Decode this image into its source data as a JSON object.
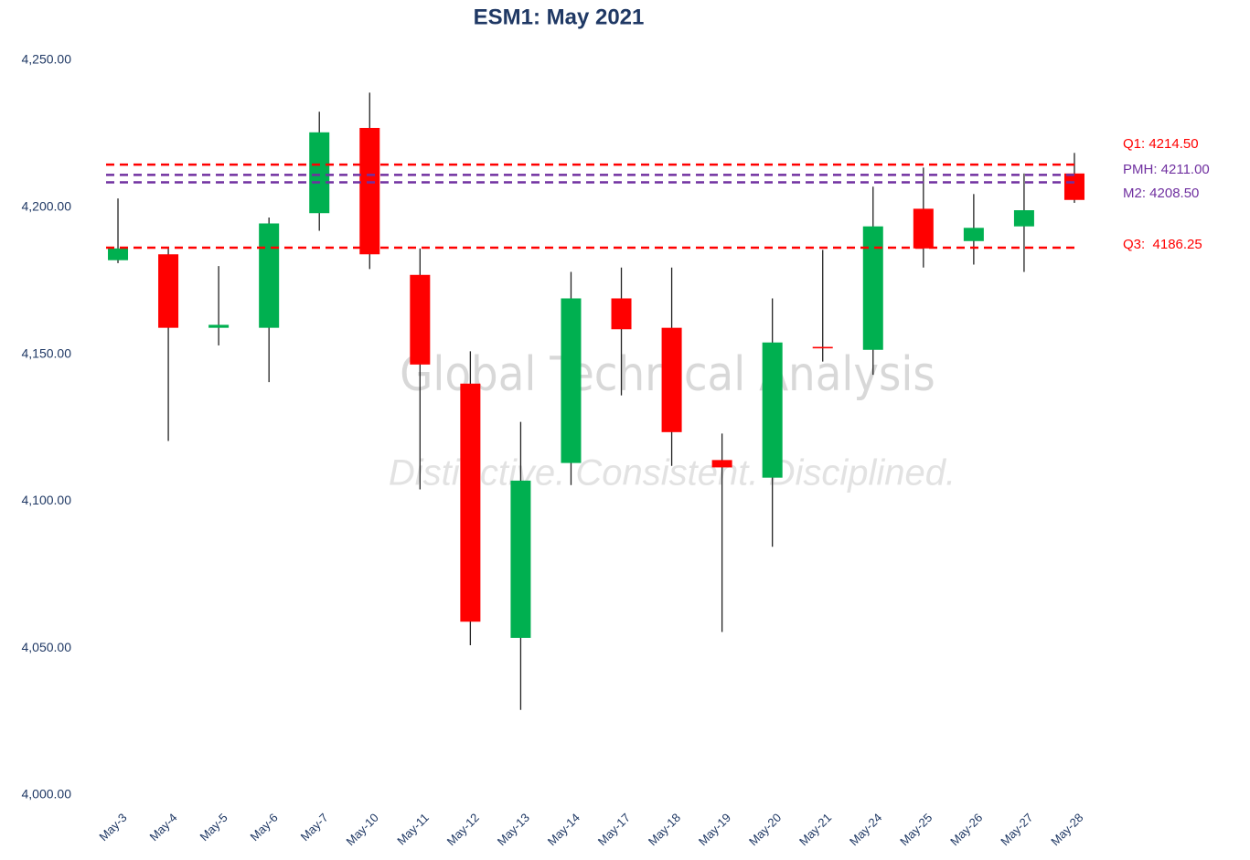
{
  "chart_data": {
    "type": "candlestick",
    "title": "ESM1: May 2021",
    "categories": [
      "May-3",
      "May-4",
      "May-5",
      "May-6",
      "May-7",
      "May-10",
      "May-11",
      "May-12",
      "May-13",
      "May-14",
      "May-17",
      "May-18",
      "May-19",
      "May-20",
      "May-21",
      "May-24",
      "May-25",
      "May-26",
      "May-27",
      "May-28"
    ],
    "open": [
      4182,
      4184,
      4159,
      4159,
      4198,
      4227,
      4177,
      4140,
      4053.5,
      4113,
      4169,
      4159,
      4114,
      4108,
      4152.5,
      4151.5,
      4199.5,
      4188.5,
      4193.5,
      4211.5
    ],
    "high": [
      4203,
      4186,
      4180,
      4196.5,
      4232.5,
      4239,
      4186,
      4151,
      4127,
      4178,
      4179.5,
      4179.5,
      4123,
      4169,
      4185.5,
      4207,
      4213.5,
      4204.5,
      4211.5,
      4218.5
    ],
    "low": [
      4181,
      4120.5,
      4153,
      4140.5,
      4192,
      4179,
      4104,
      4051,
      4029,
      4105.5,
      4136,
      4112,
      4055.5,
      4084.5,
      4147.5,
      4143,
      4179.5,
      4180.5,
      4178,
      4201.5
    ],
    "close": [
      4186,
      4159,
      4160,
      4194.5,
      4225.5,
      4184,
      4146.5,
      4059,
      4107,
      4169,
      4158.5,
      4123.5,
      4111.5,
      4154,
      4152,
      4193.5,
      4186,
      4193,
      4199,
      4202.5
    ],
    "up_color": "#00b050",
    "down_color": "#ff0000",
    "levels": [
      {
        "value": 4214.5,
        "label": "Q1: 4214.50",
        "color": "#ff0000"
      },
      {
        "value": 4211,
        "label": "PMH: 4211.00",
        "color": "#7030a0"
      },
      {
        "value": 4208.5,
        "label": "M2: 4208.50",
        "color": "#7030a0"
      },
      {
        "value": 4186.25,
        "label": "Q3:  4186.25",
        "color": "#ff0000"
      }
    ],
    "watermark": [
      "Global Technical Analysis",
      "Distinctive. Consistent. Disciplined."
    ],
    "ylim": [
      4000,
      4250
    ],
    "yticks": [
      {
        "value": 4000,
        "label": "4,000.00"
      },
      {
        "value": 4050,
        "label": "4,050.00"
      },
      {
        "value": 4100,
        "label": "4,100.00"
      },
      {
        "value": 4150,
        "label": "4,150.00"
      },
      {
        "value": 4200,
        "label": "4,200.00"
      },
      {
        "value": 4250,
        "label": "4,250.00"
      }
    ],
    "grid": false
  }
}
